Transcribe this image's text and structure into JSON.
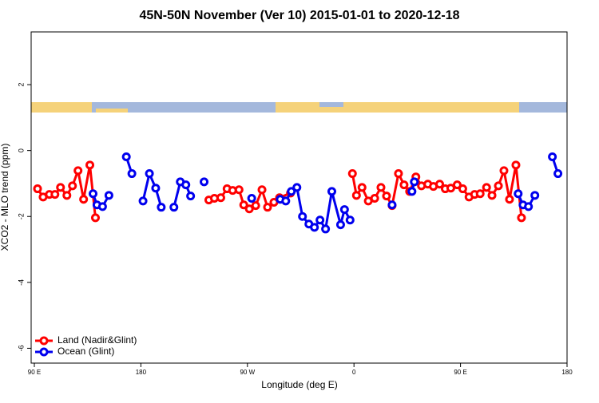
{
  "chart_data": {
    "type": "line",
    "title": "45N-50N November (Ver 10)   2015-01-01 to 2020-12-18",
    "x_label": "Longitude (deg E)",
    "y_label": "XCO2 - MLO trend (ppm)",
    "xlim": [
      87.3,
      540
    ],
    "ylim": [
      -6.45,
      3.6
    ],
    "xticks": [
      {
        "value": 90,
        "label": "90 E"
      },
      {
        "value": 180,
        "label": "180"
      },
      {
        "value": 270,
        "label": "90 W"
      },
      {
        "value": 360,
        "label": "0"
      },
      {
        "value": 450,
        "label": "90 E"
      },
      {
        "value": 540,
        "label": "180"
      }
    ],
    "yticks": [
      -6,
      -4,
      -2,
      0,
      2
    ],
    "legend": "bottom-left",
    "series": [
      {
        "name": "Land (Nadir&Glint)",
        "color": "#ff0000",
        "x": [
          92.7,
          97.4,
          102.7,
          107.4,
          112.1,
          117.5,
          122.2,
          126.9,
          131.6,
          136.9,
          141.6,
          null,
          237.4,
          242.1,
          247.5,
          252.8,
          257.5,
          262.9,
          266.9,
          271.6,
          277.0,
          282.3,
          287.0,
          292.4,
          297.1,
          306.4,
          null,
          358.7,
          362.1,
          366.8,
          372.1,
          377.5,
          382.8,
          387.5,
          392.2,
          397.6,
          402.3,
          407.0,
          412.3,
          417.0,
          422.4,
          427.1,
          432.4,
          437.1,
          441.8,
          447.2,
          451.9,
          457.2,
          461.9,
          466.6,
          472.0,
          476.6,
          482.0,
          486.7,
          491.4,
          496.8,
          501.5
        ],
        "values": [
          -1.16,
          -1.41,
          -1.33,
          -1.33,
          -1.12,
          -1.36,
          -1.07,
          -0.61,
          -1.48,
          -0.44,
          -2.04,
          null,
          -1.5,
          -1.45,
          -1.43,
          -1.16,
          -1.21,
          -1.19,
          -1.65,
          -1.77,
          -1.67,
          -1.19,
          -1.72,
          -1.57,
          -1.43,
          -1.29,
          null,
          -0.7,
          -1.36,
          -1.12,
          -1.53,
          -1.45,
          -1.12,
          -1.38,
          -1.67,
          -0.7,
          -1.04,
          -1.24,
          -0.8,
          -1.07,
          -1.02,
          -1.09,
          -1.02,
          -1.16,
          -1.14,
          -1.04,
          -1.16,
          -1.41,
          -1.33,
          -1.31,
          -1.12,
          -1.36,
          -1.07,
          -0.61,
          -1.48,
          -0.44,
          -2.04
        ]
      },
      {
        "name": "Ocean (Glint)",
        "color": "#0000ee",
        "x": [
          139.6,
          142.9,
          147.6,
          153.0,
          null,
          167.7,
          172.4,
          null,
          181.8,
          187.2,
          192.5,
          197.2,
          null,
          207.9,
          213.3,
          218.0,
          222.0,
          null,
          233.4,
          null,
          273.6,
          null,
          297.7,
          302.4,
          307.1,
          311.8,
          316.5,
          321.9,
          326.6,
          331.3,
          336.0,
          341.3,
          348.7,
          352.0,
          356.7,
          null,
          392.2,
          null,
          409.0,
          411.0,
          null,
          498.7,
          502.8,
          507.4,
          512.8,
          null,
          527.6,
          532.3
        ],
        "values": [
          -1.31,
          -1.65,
          -1.7,
          -1.36,
          null,
          -0.19,
          -0.7,
          null,
          -1.53,
          -0.7,
          -1.14,
          -1.72,
          null,
          -1.72,
          -0.95,
          -1.04,
          -1.38,
          null,
          -0.95,
          null,
          -1.45,
          null,
          -1.48,
          -1.53,
          -1.24,
          -1.12,
          -2.0,
          -2.23,
          -2.33,
          -2.11,
          -2.38,
          -1.24,
          -2.25,
          -1.79,
          -2.11,
          null,
          -1.65,
          null,
          -1.24,
          -0.95,
          null,
          -1.31,
          -1.65,
          -1.7,
          -1.36,
          null,
          -0.19,
          -0.7
        ]
      }
    ]
  }
}
